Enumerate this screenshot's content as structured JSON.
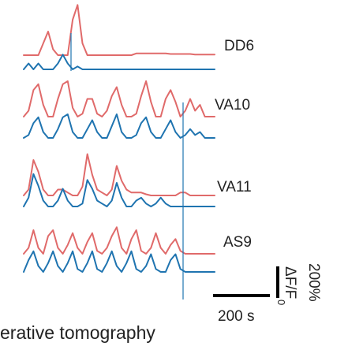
{
  "chart_data": {
    "type": "line",
    "x_unit": "s",
    "y_unit": "ΔF/F0 %",
    "colors": {
      "red": "#e06a6a",
      "blue": "#1f74b0"
    },
    "panels": [
      {
        "name": "DD6",
        "series": [
          {
            "color": "red",
            "values": [
              0,
              0,
              0,
              0,
              20,
              40,
              10,
              0,
              0,
              0,
              60,
              85,
              20,
              0,
              0,
              0,
              0,
              0,
              0,
              0,
              0,
              0,
              0,
              3,
              3,
              3,
              3,
              3,
              3,
              3,
              2,
              2,
              2,
              2,
              2,
              1,
              1,
              1,
              1,
              1
            ]
          },
          {
            "color": "blue",
            "values": [
              0,
              10,
              0,
              10,
              0,
              0,
              0,
              10,
              25,
              10,
              0,
              5,
              0,
              0,
              0,
              0,
              0,
              0,
              0,
              0,
              0,
              0,
              0,
              0,
              0,
              0,
              0,
              0,
              0,
              0,
              0,
              0,
              0,
              0,
              0,
              0,
              0,
              0,
              0,
              0
            ]
          }
        ]
      },
      {
        "name": "VA10",
        "series": [
          {
            "color": "red",
            "values": [
              0,
              10,
              45,
              55,
              20,
              0,
              0,
              30,
              55,
              60,
              15,
              0,
              5,
              30,
              30,
              5,
              0,
              10,
              35,
              50,
              20,
              0,
              0,
              5,
              35,
              60,
              25,
              0,
              0,
              30,
              45,
              25,
              0,
              10,
              30,
              10,
              20,
              0,
              0,
              0
            ]
          },
          {
            "color": "blue",
            "values": [
              0,
              5,
              25,
              35,
              10,
              0,
              0,
              15,
              35,
              40,
              10,
              0,
              0,
              15,
              30,
              10,
              0,
              0,
              20,
              40,
              10,
              0,
              0,
              5,
              25,
              35,
              10,
              0,
              0,
              15,
              30,
              10,
              0,
              5,
              15,
              5,
              10,
              0,
              0,
              0
            ]
          }
        ]
      },
      {
        "name": "VA11",
        "series": [
          {
            "color": "red",
            "values": [
              0,
              10,
              60,
              40,
              10,
              0,
              0,
              10,
              10,
              5,
              0,
              0,
              15,
              70,
              35,
              10,
              5,
              0,
              10,
              50,
              25,
              10,
              5,
              5,
              5,
              2,
              0,
              0,
              0,
              0,
              0,
              0,
              5,
              5,
              0,
              0,
              0,
              0,
              0,
              0
            ]
          },
          {
            "color": "blue",
            "values": [
              0,
              15,
              55,
              35,
              10,
              0,
              0,
              10,
              30,
              10,
              0,
              0,
              5,
              45,
              30,
              10,
              5,
              0,
              10,
              40,
              15,
              0,
              0,
              10,
              15,
              5,
              0,
              5,
              15,
              5,
              0,
              0,
              0,
              0,
              0,
              0,
              0,
              0,
              0,
              0
            ]
          }
        ]
      },
      {
        "name": "AS9",
        "series": [
          {
            "color": "red",
            "values": [
              0,
              10,
              40,
              10,
              0,
              30,
              40,
              10,
              0,
              15,
              35,
              10,
              0,
              20,
              35,
              5,
              0,
              10,
              30,
              45,
              10,
              0,
              25,
              40,
              5,
              0,
              10,
              35,
              10,
              0,
              15,
              25,
              5,
              0,
              0,
              0,
              0,
              0,
              0,
              0
            ]
          },
          {
            "color": "blue",
            "values": [
              0,
              20,
              35,
              10,
              0,
              15,
              35,
              10,
              0,
              15,
              35,
              5,
              0,
              15,
              35,
              5,
              0,
              15,
              35,
              10,
              0,
              15,
              35,
              5,
              0,
              10,
              30,
              5,
              0,
              0,
              20,
              30,
              5,
              0,
              0,
              0,
              0,
              0,
              0,
              0
            ]
          }
        ]
      }
    ],
    "scale_bar": {
      "time_label": "200 s",
      "amplitude_label": "200%",
      "axis_label": "ΔF/F",
      "axis_label_subscript": "0"
    },
    "caption": "erative tomography"
  }
}
